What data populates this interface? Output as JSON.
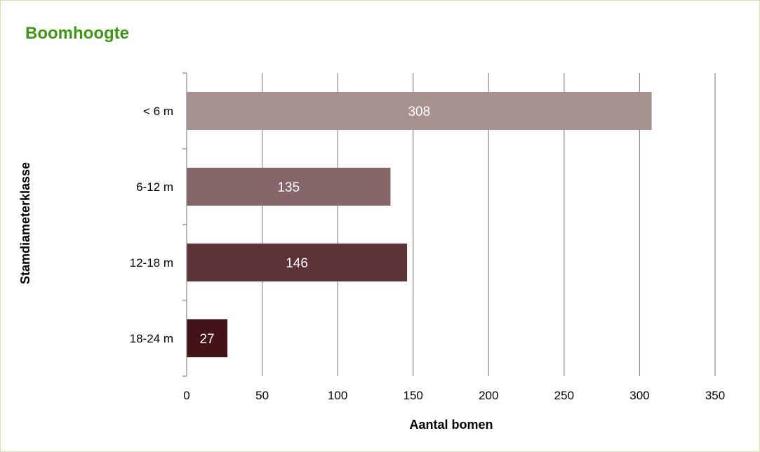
{
  "chart_data": {
    "type": "bar",
    "orientation": "horizontal",
    "title": "Boomhoogte",
    "xlabel": "Aantal bomen",
    "ylabel": "Stamdiameterklasse",
    "categories": [
      "< 6 m",
      "6-12 m",
      "12-18 m",
      "18-24 m"
    ],
    "values": [
      308,
      135,
      146,
      27
    ],
    "data_labels": [
      "308",
      "135",
      "146",
      "27"
    ],
    "xlim": [
      0,
      350
    ],
    "xticks": [
      0,
      50,
      100,
      150,
      200,
      250,
      300,
      350
    ],
    "xtick_labels": [
      "0",
      "50",
      "100",
      "150",
      "200",
      "250",
      "300",
      "350"
    ],
    "grid": "vertical",
    "legend": "none",
    "colors": [
      "#a89290",
      "#87666a",
      "#5e3338",
      "#441317"
    ],
    "title_color": "#3c9a12",
    "border_color": "#d8dfa6"
  }
}
